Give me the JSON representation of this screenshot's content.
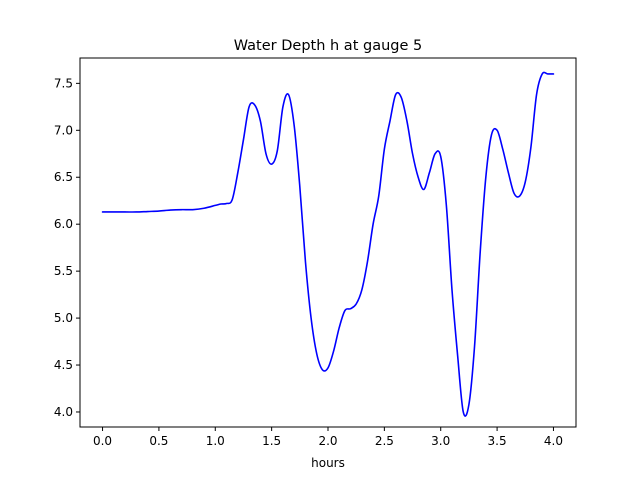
{
  "chart_data": {
    "type": "line",
    "title": "Water Depth h at gauge 5",
    "xlabel": "hours",
    "ylabel": "",
    "xlim": [
      -0.2,
      4.2
    ],
    "ylim": [
      3.84,
      7.77
    ],
    "xticks": [
      0.0,
      0.5,
      1.0,
      1.5,
      2.0,
      2.5,
      3.0,
      3.5,
      4.0
    ],
    "xtick_labels": [
      "0.0",
      "0.5",
      "1.0",
      "1.5",
      "2.0",
      "2.5",
      "3.0",
      "3.5",
      "4.0"
    ],
    "yticks": [
      4.0,
      4.5,
      5.0,
      5.5,
      6.0,
      6.5,
      7.0,
      7.5
    ],
    "ytick_labels": [
      "4.0",
      "4.5",
      "5.0",
      "5.5",
      "6.0",
      "6.5",
      "7.0",
      "7.5"
    ],
    "grid": false,
    "series": [
      {
        "color": "#0000ff",
        "x": [
          0.0,
          0.1,
          0.2,
          0.3,
          0.4,
          0.5,
          0.6,
          0.7,
          0.8,
          0.9,
          1.0,
          1.05,
          1.1,
          1.15,
          1.2,
          1.25,
          1.3,
          1.35,
          1.4,
          1.45,
          1.5,
          1.55,
          1.6,
          1.65,
          1.7,
          1.75,
          1.8,
          1.85,
          1.9,
          1.95,
          2.0,
          2.05,
          2.1,
          2.15,
          2.2,
          2.25,
          2.3,
          2.35,
          2.4,
          2.45,
          2.5,
          2.55,
          2.6,
          2.65,
          2.7,
          2.75,
          2.8,
          2.85,
          2.9,
          2.95,
          3.0,
          3.05,
          3.1,
          3.15,
          3.2,
          3.25,
          3.3,
          3.35,
          3.4,
          3.45,
          3.5,
          3.55,
          3.6,
          3.65,
          3.7,
          3.75,
          3.8,
          3.85,
          3.9,
          3.95,
          4.0
        ],
        "values": [
          6.13,
          6.13,
          6.13,
          6.13,
          6.135,
          6.14,
          6.15,
          6.155,
          6.155,
          6.17,
          6.2,
          6.215,
          6.22,
          6.26,
          6.55,
          6.9,
          7.25,
          7.27,
          7.1,
          6.75,
          6.64,
          6.78,
          7.25,
          7.38,
          7.05,
          6.4,
          5.6,
          5.0,
          4.62,
          4.45,
          4.47,
          4.65,
          4.9,
          5.08,
          5.1,
          5.15,
          5.3,
          5.6,
          6.0,
          6.3,
          6.8,
          7.1,
          7.38,
          7.35,
          7.1,
          6.75,
          6.5,
          6.37,
          6.55,
          6.75,
          6.72,
          6.2,
          5.3,
          4.6,
          4.0,
          4.08,
          4.7,
          5.7,
          6.5,
          6.95,
          7.0,
          6.8,
          6.55,
          6.33,
          6.3,
          6.45,
          6.82,
          7.38,
          7.6,
          7.6,
          7.6
        ]
      }
    ]
  }
}
